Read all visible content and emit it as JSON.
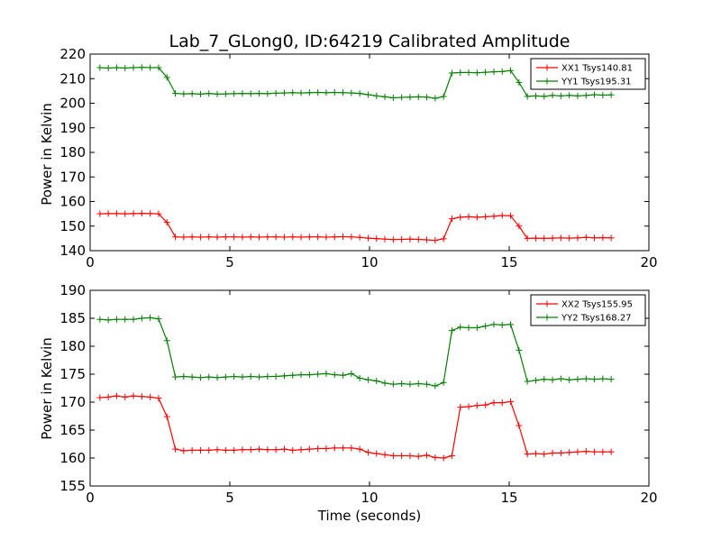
{
  "chart_data": [
    {
      "type": "line",
      "title": "Lab_7_GLong0, ID:64219 Calibrated Amplitude",
      "xlabel": "",
      "ylabel": "Power in Kelvin",
      "xlim": [
        0,
        20
      ],
      "ylim": [
        140,
        220
      ],
      "xticks": [
        "0",
        "5",
        "10",
        "15",
        "20"
      ],
      "yticks": [
        "140",
        "150",
        "160",
        "170",
        "180",
        "190",
        "200",
        "210",
        "220"
      ],
      "legend_position": "top-right",
      "series": [
        {
          "name": "XX1 Tsys140.81",
          "color": "#ff0000",
          "marker": "plus",
          "x": [
            0.35,
            0.65,
            0.95,
            1.25,
            1.55,
            1.85,
            2.15,
            2.45,
            2.75,
            3.05,
            3.35,
            3.65,
            3.95,
            4.25,
            4.55,
            4.85,
            5.15,
            5.45,
            5.75,
            6.05,
            6.35,
            6.65,
            6.95,
            7.25,
            7.55,
            7.85,
            8.15,
            8.45,
            8.75,
            9.05,
            9.35,
            9.65,
            9.95,
            10.25,
            10.55,
            10.85,
            11.15,
            11.45,
            11.75,
            12.05,
            12.35,
            12.65,
            12.95,
            13.25,
            13.55,
            13.85,
            14.15,
            14.45,
            14.75,
            15.05,
            15.35,
            15.65,
            15.95,
            16.25,
            16.55,
            16.85,
            17.15,
            17.45,
            17.75,
            18.05,
            18.35,
            18.65
          ],
          "y": [
            155.0,
            155.1,
            155.1,
            155.0,
            155.1,
            155.2,
            155.1,
            155.0,
            151.5,
            145.6,
            145.5,
            145.6,
            145.5,
            145.6,
            145.5,
            145.6,
            145.6,
            145.5,
            145.6,
            145.5,
            145.6,
            145.6,
            145.5,
            145.6,
            145.5,
            145.6,
            145.6,
            145.5,
            145.6,
            145.7,
            145.6,
            145.4,
            145.1,
            144.9,
            144.7,
            144.5,
            144.6,
            144.7,
            144.6,
            144.4,
            144.2,
            144.8,
            153.0,
            153.6,
            153.8,
            153.6,
            153.8,
            154.0,
            154.3,
            154.2,
            150.0,
            145.0,
            145.1,
            145.0,
            145.1,
            145.2,
            145.1,
            145.2,
            145.4,
            145.2,
            145.3,
            145.2
          ]
        },
        {
          "name": "YY1 Tsys195.31",
          "color": "#008000",
          "marker": "plus",
          "x": [
            0.35,
            0.65,
            0.95,
            1.25,
            1.55,
            1.85,
            2.15,
            2.45,
            2.75,
            3.05,
            3.35,
            3.65,
            3.95,
            4.25,
            4.55,
            4.85,
            5.15,
            5.45,
            5.75,
            6.05,
            6.35,
            6.65,
            6.95,
            7.25,
            7.55,
            7.85,
            8.15,
            8.45,
            8.75,
            9.05,
            9.35,
            9.65,
            9.95,
            10.25,
            10.55,
            10.85,
            11.15,
            11.45,
            11.75,
            12.05,
            12.35,
            12.65,
            12.95,
            13.25,
            13.55,
            13.85,
            14.15,
            14.45,
            14.75,
            15.05,
            15.35,
            15.65,
            15.95,
            16.25,
            16.55,
            16.85,
            17.15,
            17.45,
            17.75,
            18.05,
            18.35,
            18.65
          ],
          "y": [
            214.5,
            214.3,
            214.5,
            214.3,
            214.5,
            214.6,
            214.5,
            214.5,
            210.5,
            204.0,
            203.8,
            203.9,
            203.7,
            204.0,
            203.7,
            203.8,
            203.9,
            204.0,
            203.9,
            204.0,
            203.9,
            204.1,
            204.2,
            204.3,
            204.2,
            204.3,
            204.4,
            204.3,
            204.4,
            204.3,
            204.2,
            204.0,
            203.5,
            203.0,
            202.6,
            202.2,
            202.4,
            202.5,
            202.6,
            202.5,
            202.0,
            202.7,
            212.3,
            212.5,
            212.5,
            212.4,
            212.6,
            212.8,
            212.9,
            213.3,
            208.5,
            202.8,
            203.0,
            202.8,
            203.2,
            203.0,
            203.2,
            203.0,
            203.2,
            203.5,
            203.3,
            203.4
          ]
        }
      ]
    },
    {
      "type": "line",
      "title": "",
      "xlabel": "Time (seconds)",
      "ylabel": "Power in Kelvin",
      "xlim": [
        0,
        20
      ],
      "ylim": [
        155,
        190
      ],
      "xticks": [
        "0",
        "5",
        "10",
        "15",
        "20"
      ],
      "yticks": [
        "155",
        "160",
        "165",
        "170",
        "175",
        "180",
        "185",
        "190"
      ],
      "legend_position": "top-right",
      "series": [
        {
          "name": "XX2 Tsys155.95",
          "color": "#ff0000",
          "marker": "plus",
          "x": [
            0.35,
            0.65,
            0.95,
            1.25,
            1.55,
            1.85,
            2.15,
            2.45,
            2.75,
            3.05,
            3.35,
            3.65,
            3.95,
            4.25,
            4.55,
            4.85,
            5.15,
            5.45,
            5.75,
            6.05,
            6.35,
            6.65,
            6.95,
            7.25,
            7.55,
            7.85,
            8.15,
            8.45,
            8.75,
            9.05,
            9.35,
            9.65,
            9.95,
            10.25,
            10.55,
            10.85,
            11.15,
            11.45,
            11.75,
            12.05,
            12.35,
            12.65,
            12.95,
            13.25,
            13.55,
            13.85,
            14.15,
            14.45,
            14.75,
            15.05,
            15.35,
            15.65,
            15.95,
            16.25,
            16.55,
            16.85,
            17.15,
            17.45,
            17.75,
            18.05,
            18.35,
            18.65
          ],
          "y": [
            170.8,
            170.9,
            171.1,
            170.9,
            171.1,
            171.0,
            170.9,
            170.7,
            167.4,
            161.6,
            161.3,
            161.4,
            161.4,
            161.4,
            161.5,
            161.4,
            161.4,
            161.5,
            161.5,
            161.6,
            161.5,
            161.5,
            161.6,
            161.4,
            161.5,
            161.6,
            161.7,
            161.7,
            161.8,
            161.8,
            161.8,
            161.6,
            161.0,
            160.8,
            160.6,
            160.4,
            160.4,
            160.4,
            160.3,
            160.5,
            160.1,
            160.0,
            160.4,
            169.1,
            169.2,
            169.4,
            169.5,
            169.9,
            169.9,
            170.1,
            165.8,
            160.7,
            160.8,
            160.7,
            160.9,
            160.9,
            161.0,
            161.1,
            161.2,
            161.1,
            161.1,
            161.1
          ]
        },
        {
          "name": "YY2 Tsys168.27",
          "color": "#008000",
          "marker": "plus",
          "x": [
            0.35,
            0.65,
            0.95,
            1.25,
            1.55,
            1.85,
            2.15,
            2.45,
            2.75,
            3.05,
            3.35,
            3.65,
            3.95,
            4.25,
            4.55,
            4.85,
            5.15,
            5.45,
            5.75,
            6.05,
            6.35,
            6.65,
            6.95,
            7.25,
            7.55,
            7.85,
            8.15,
            8.45,
            8.75,
            9.05,
            9.35,
            9.65,
            9.95,
            10.25,
            10.55,
            10.85,
            11.15,
            11.45,
            11.75,
            12.05,
            12.35,
            12.65,
            12.95,
            13.25,
            13.55,
            13.85,
            14.15,
            14.45,
            14.75,
            15.05,
            15.35,
            15.65,
            15.95,
            16.25,
            16.55,
            16.85,
            17.15,
            17.45,
            17.75,
            18.05,
            18.35,
            18.65
          ],
          "y": [
            184.8,
            184.7,
            184.8,
            184.8,
            184.8,
            185.0,
            185.1,
            184.9,
            181.0,
            174.5,
            174.6,
            174.5,
            174.4,
            174.5,
            174.4,
            174.5,
            174.6,
            174.5,
            174.6,
            174.5,
            174.6,
            174.6,
            174.7,
            174.8,
            174.9,
            174.9,
            175.0,
            175.1,
            174.9,
            174.8,
            175.1,
            174.3,
            174.0,
            173.8,
            173.4,
            173.2,
            173.3,
            173.2,
            173.3,
            173.2,
            172.9,
            173.5,
            182.8,
            183.4,
            183.3,
            183.3,
            183.6,
            183.9,
            183.8,
            183.9,
            179.3,
            173.7,
            173.9,
            174.1,
            174.0,
            174.2,
            174.0,
            174.1,
            174.2,
            174.1,
            174.2,
            174.1
          ]
        }
      ]
    }
  ]
}
